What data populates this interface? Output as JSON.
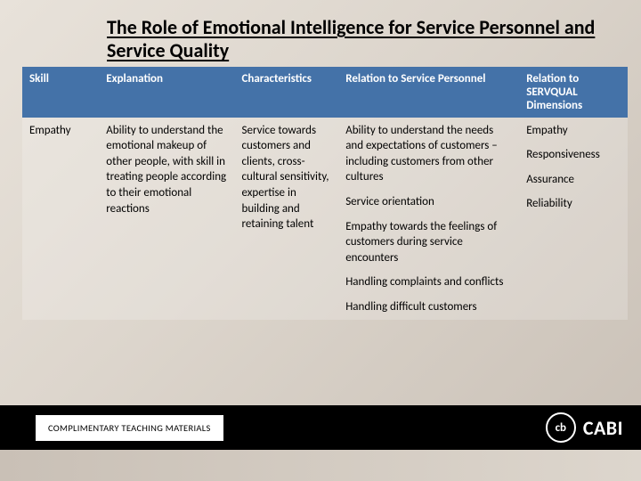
{
  "title": "The Role of Emotional Intelligence for Service Personnel and Service Quality",
  "table": {
    "headers": {
      "skill": "Skill",
      "explanation": "Explanation",
      "characteristics": "Characteristics",
      "relation_personnel": "Relation to Service Personnel",
      "relation_servqual": "Relation to SERVQUAL Dimensions"
    },
    "header_bg": "#4472a8",
    "header_fg": "#ffffff",
    "row": {
      "skill": "Empathy",
      "explanation": "Ability to understand the emotional makeup of other people, with skill in treating people according to their emotional reactions",
      "characteristics": "Service towards customers and clients, cross-cultural sensitivity, expertise in building and retaining talent",
      "relation_personnel": [
        "Ability to understand the needs and expectations of customers – including customers from other cultures",
        "Service orientation",
        "Empathy towards the feelings of customers during service encounters",
        "Handling complaints and conflicts",
        "Handling difficult customers"
      ],
      "relation_servqual": [
        "Empathy",
        "Responsiveness",
        "Assurance",
        "Reliability"
      ]
    }
  },
  "footer": {
    "label": "COMPLIMENTARY TEACHING MATERIALS",
    "logo_text": "CABI",
    "logo_inner": "cb"
  },
  "colors": {
    "footer_bar": "#000000",
    "footer_box_bg": "#ffffff",
    "title_color": "#000000"
  }
}
